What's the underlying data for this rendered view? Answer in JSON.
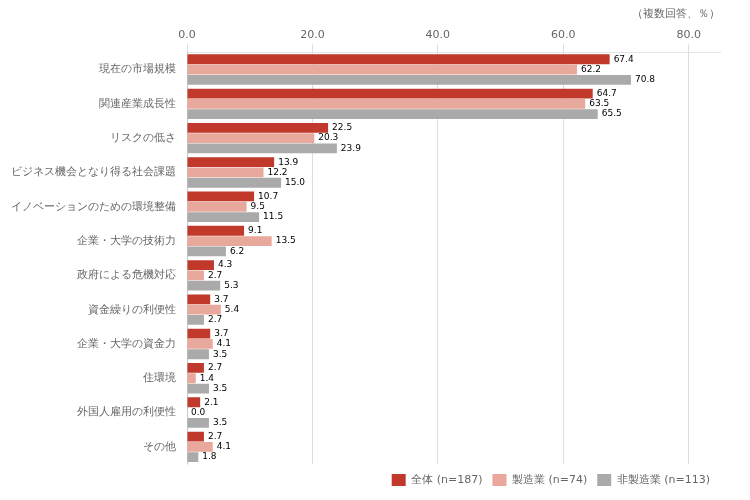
{
  "chart_data": {
    "type": "bar",
    "orientation": "horizontal",
    "title": "（複数回答、％）",
    "categories": [
      "その他",
      "外国人雇用の利便性",
      "住環境",
      "企業・大学の資金力",
      "資金繰りの利便性",
      "政府による危機対応",
      "企業・大学の技術力",
      "イノベーションのための環境整備",
      "ビジネス機会となり得る社会課題",
      "リスクの低さ",
      "関連産業成長性",
      "現在の市場規模"
    ],
    "series": [
      {
        "name": "全体 (n=187)",
        "color": "#c0392b",
        "values": [
          2.7,
          2.1,
          2.7,
          3.7,
          3.7,
          4.3,
          9.1,
          10.7,
          13.9,
          22.5,
          64.7,
          67.4
        ],
        "value_labels": [
          "2.7",
          "2.1",
          "2.7",
          "3.7",
          "3.7",
          "4.3",
          "9.1",
          "10.7",
          "13.9",
          "22.5",
          "64.7",
          "67.4"
        ]
      },
      {
        "name": "製造業 (n=74)",
        "color": "#e8a89c",
        "values": [
          4.1,
          0.0,
          1.4,
          4.1,
          5.4,
          2.7,
          13.5,
          9.5,
          12.2,
          20.3,
          63.5,
          62.2
        ],
        "value_labels": [
          "4.1",
          "0.0",
          "1.4",
          "4.1",
          "5.4",
          "2.7",
          "13.5",
          "9.5",
          "12.2",
          "20.3",
          "63.5",
          "62.2"
        ]
      },
      {
        "name": "非製造業 (n=113)",
        "color": "#aaaaaa",
        "values": [
          1.8,
          3.5,
          3.5,
          3.5,
          2.7,
          5.3,
          6.2,
          11.5,
          15.0,
          23.9,
          65.5,
          70.8
        ],
        "value_labels": [
          "1.8",
          "3.5",
          "3.5",
          "3.5",
          "2.7",
          "5.3",
          "6.2",
          "11.5",
          "15.0",
          "23.9",
          "65.5",
          "70.8"
        ]
      }
    ],
    "xlim": [
      0,
      85
    ],
    "xticks": [
      {
        "value": 0,
        "label": "0.0"
      },
      {
        "value": 20,
        "label": "20.0"
      },
      {
        "value": 40,
        "label": "40.0"
      },
      {
        "value": 60,
        "label": "60.0"
      },
      {
        "value": 80,
        "label": "80.0"
      }
    ],
    "grid": true,
    "legend": "lower right",
    "data_labels": true
  }
}
